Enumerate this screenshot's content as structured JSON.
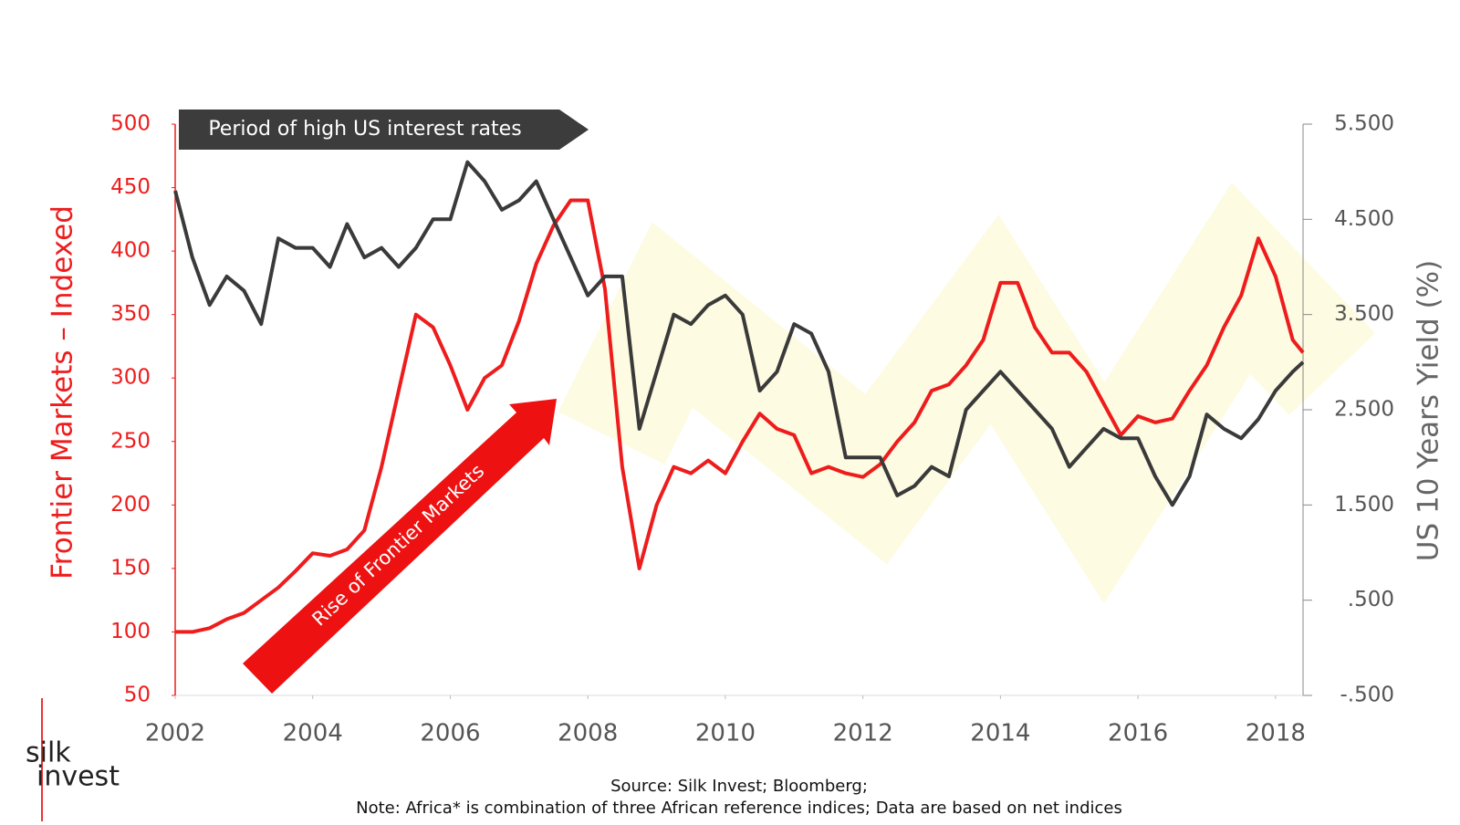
{
  "chart_data": {
    "type": "line",
    "banner": "Period of high US interest rates",
    "arrow_label": "Rise of Frontier Markets",
    "y_label": "Frontier Markets – Indexed",
    "y2_label": "US 10 Years Yield (%)",
    "source": "Source: Silk Invest; Bloomberg;",
    "note": "Note: Africa* is combination of three African reference indices; Data are based on net indices",
    "logo_top": "silk",
    "logo_bottom": "invest",
    "x": [
      2002.0,
      2002.25,
      2002.5,
      2002.75,
      2003.0,
      2003.25,
      2003.5,
      2003.75,
      2004.0,
      2004.25,
      2004.5,
      2004.75,
      2005.0,
      2005.25,
      2005.5,
      2005.75,
      2006.0,
      2006.25,
      2006.5,
      2006.75,
      2007.0,
      2007.25,
      2007.5,
      2007.75,
      2008.0,
      2008.25,
      2008.5,
      2008.75,
      2009.0,
      2009.25,
      2009.5,
      2009.75,
      2010.0,
      2010.25,
      2010.5,
      2010.75,
      2011.0,
      2011.25,
      2011.5,
      2011.75,
      2012.0,
      2012.25,
      2012.5,
      2012.75,
      2013.0,
      2013.25,
      2013.5,
      2013.75,
      2014.0,
      2014.25,
      2014.5,
      2014.75,
      2015.0,
      2015.25,
      2015.5,
      2015.75,
      2016.0,
      2016.25,
      2016.5,
      2016.75,
      2017.0,
      2017.25,
      2017.5,
      2017.75,
      2018.0,
      2018.25,
      2018.4
    ],
    "series": [
      {
        "name": "Frontier Markets",
        "color": "#ee1c1c",
        "axis": "y",
        "values": [
          100,
          100,
          103,
          110,
          115,
          125,
          135,
          148,
          162,
          160,
          165,
          180,
          230,
          290,
          350,
          340,
          310,
          275,
          300,
          310,
          345,
          390,
          420,
          440,
          440,
          370,
          230,
          150,
          200,
          230,
          225,
          235,
          225,
          250,
          272,
          260,
          255,
          225,
          230,
          225,
          222,
          232,
          250,
          265,
          290,
          295,
          310,
          330,
          375,
          375,
          340,
          320,
          320,
          305,
          280,
          255,
          270,
          265,
          268,
          290,
          310,
          340,
          365,
          410,
          380,
          330,
          320
        ]
      },
      {
        "name": "US 10 Years Yield",
        "color": "#3a3a3a",
        "axis": "y2",
        "values": [
          4.8,
          4.1,
          3.6,
          3.9,
          3.75,
          3.4,
          4.3,
          4.2,
          4.2,
          4.0,
          4.45,
          4.1,
          4.2,
          4.0,
          4.2,
          4.5,
          4.5,
          5.1,
          4.9,
          4.6,
          4.7,
          4.9,
          4.5,
          4.1,
          3.7,
          3.9,
          3.9,
          2.3,
          2.9,
          3.5,
          3.4,
          3.6,
          3.7,
          3.5,
          2.7,
          2.9,
          3.4,
          3.3,
          2.9,
          2.0,
          2.0,
          2.0,
          1.6,
          1.7,
          1.9,
          1.8,
          2.5,
          2.7,
          2.9,
          2.7,
          2.5,
          2.3,
          1.9,
          2.1,
          2.3,
          2.2,
          2.2,
          1.8,
          1.5,
          1.8,
          2.45,
          2.3,
          2.2,
          2.4,
          2.7,
          2.9,
          3.0
        ]
      }
    ],
    "xlim": [
      2002,
      2018.4
    ],
    "xticks": [
      2002,
      2004,
      2006,
      2008,
      2010,
      2012,
      2014,
      2016,
      2018
    ],
    "ylim": [
      50,
      500
    ],
    "yticks": [
      50,
      100,
      150,
      200,
      250,
      300,
      350,
      400,
      450,
      500
    ],
    "y2lim": [
      -0.5,
      5.5
    ],
    "y2ticks": [
      {
        "value": -0.5,
        "label": "-.500"
      },
      {
        "value": 0.5,
        "label": ".500"
      },
      {
        "value": 1.5,
        "label": "1.500"
      },
      {
        "value": 2.5,
        "label": "2.500"
      },
      {
        "value": 3.5,
        "label": "3.500"
      },
      {
        "value": 4.5,
        "label": "4.500"
      },
      {
        "value": 5.5,
        "label": "5.500"
      }
    ]
  }
}
